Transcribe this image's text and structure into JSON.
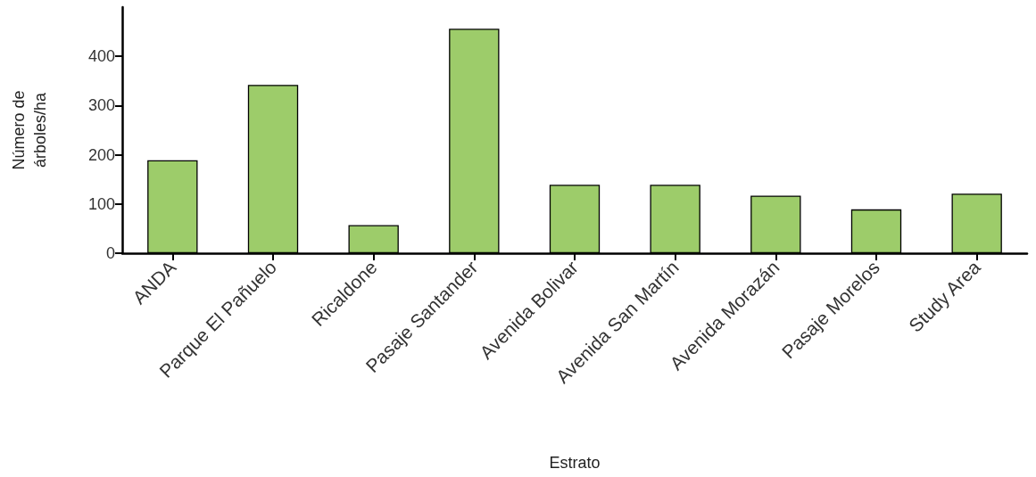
{
  "chart_data": {
    "type": "bar",
    "xlabel": "Estrato",
    "ylabel": "Número de\nárboles/ha",
    "categories": [
      "ANDA",
      "Parque El Pañuelo",
      "Ricaldone",
      "Pasaje Santander",
      "Avenida Bolivar",
      "Avenida San Martín",
      "Avenida Morazán",
      "Pasaje Morelos",
      "Study Area"
    ],
    "values": [
      189,
      342,
      57,
      456,
      139,
      139,
      117,
      89,
      121
    ],
    "color": "#9dcc6a",
    "ylim": [
      0,
      500
    ],
    "yticks": [
      0,
      100,
      200,
      300,
      400
    ],
    "grid": false
  }
}
